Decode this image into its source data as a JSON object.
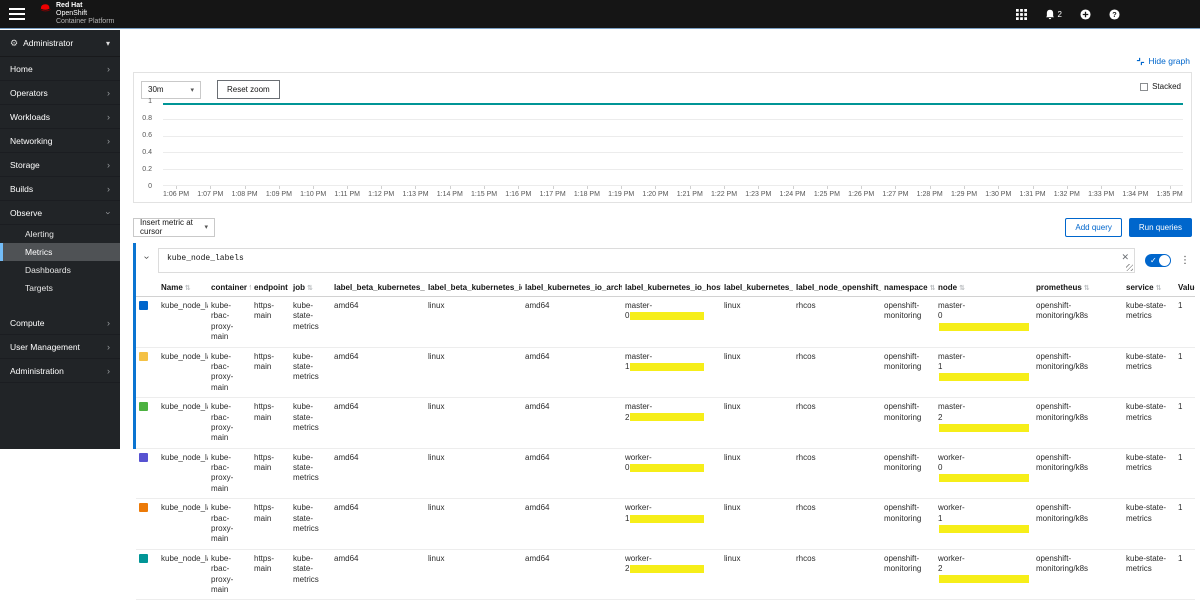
{
  "masthead": {
    "brand": {
      "line1": "Red Hat",
      "line2": "OpenShift",
      "line3": "Container Platform"
    },
    "notifications": {
      "count": "2"
    }
  },
  "sidebar": {
    "perspective": {
      "label": "Administrator"
    },
    "top_items": [
      {
        "label": "Home"
      },
      {
        "label": "Operators"
      },
      {
        "label": "Workloads"
      },
      {
        "label": "Networking"
      },
      {
        "label": "Storage"
      },
      {
        "label": "Builds"
      }
    ],
    "observe": {
      "label": "Observe",
      "children": [
        {
          "label": "Alerting",
          "active": false
        },
        {
          "label": "Metrics",
          "active": true
        },
        {
          "label": "Dashboards",
          "active": false
        },
        {
          "label": "Targets",
          "active": false
        }
      ]
    },
    "bottom_items": [
      {
        "label": "Compute"
      },
      {
        "label": "User Management"
      },
      {
        "label": "Administration"
      }
    ]
  },
  "graph_toolbar": {
    "time_range": "30m",
    "reset_zoom": "Reset zoom",
    "hide_graph": "Hide graph",
    "stacked_label": "Stacked"
  },
  "query_toolbar": {
    "insert_metric": "Insert metric at cursor",
    "add_query": "Add query",
    "run_queries": "Run queries"
  },
  "query": {
    "expression": "kube_node_labels"
  },
  "chart_data": {
    "type": "line",
    "title": "",
    "xlabel": "",
    "ylabel": "",
    "ylim": [
      0,
      1
    ],
    "grid": true,
    "legend": "none",
    "y_ticks": [
      "1",
      "0.8",
      "0.6",
      "0.4",
      "0.2",
      "0"
    ],
    "x_labels": [
      "1:06 PM",
      "1:07 PM",
      "1:08 PM",
      "1:09 PM",
      "1:10 PM",
      "1:11 PM",
      "1:12 PM",
      "1:13 PM",
      "1:14 PM",
      "1:15 PM",
      "1:16 PM",
      "1:17 PM",
      "1:18 PM",
      "1:19 PM",
      "1:20 PM",
      "1:21 PM",
      "1:22 PM",
      "1:23 PM",
      "1:24 PM",
      "1:25 PM",
      "1:26 PM",
      "1:27 PM",
      "1:28 PM",
      "1:29 PM",
      "1:30 PM",
      "1:31 PM",
      "1:32 PM",
      "1:33 PM",
      "1:34 PM",
      "1:35 PM"
    ],
    "series": [
      {
        "name": "kube_node_labels master-0",
        "constant_value": 1,
        "color": "#0066cc"
      },
      {
        "name": "kube_node_labels master-1",
        "constant_value": 1,
        "color": "#f4c145"
      },
      {
        "name": "kube_node_labels master-2",
        "constant_value": 1,
        "color": "#4cb140"
      },
      {
        "name": "kube_node_labels worker-0",
        "constant_value": 1,
        "color": "#5752d1"
      },
      {
        "name": "kube_node_labels worker-1",
        "constant_value": 1,
        "color": "#ec7a08"
      },
      {
        "name": "kube_node_labels worker-2",
        "constant_value": 1,
        "color": "#009596"
      }
    ],
    "visible_line_note": "all six series overlap as one flat line at y=1; topmost color #009596"
  },
  "table": {
    "columns": [
      {
        "label": "Name"
      },
      {
        "label": "container"
      },
      {
        "label": "endpoint"
      },
      {
        "label": "job"
      },
      {
        "label": "label_beta_kubernetes_io_arch"
      },
      {
        "label": "label_beta_kubernetes_io_os"
      },
      {
        "label": "label_kubernetes_io_arch"
      },
      {
        "label": "label_kubernetes_io_hostname"
      },
      {
        "label": "label_kubernetes_io_os"
      },
      {
        "label": "label_node_openshift_io_os_id"
      },
      {
        "label": "namespace"
      },
      {
        "label": "node"
      },
      {
        "label": "prometheus"
      },
      {
        "label": "service"
      },
      {
        "label": "Value"
      }
    ],
    "rows": [
      {
        "color": "#0066cc",
        "name": "kube_node_labels",
        "container": "kube-rbac-\nproxy-main",
        "endpoint": "https-main",
        "job": "kube-state-\nmetrics",
        "beta_arch": "amd64",
        "beta_os": "linux",
        "arch": "amd64",
        "hostname_line1": "master-",
        "hostname_line2": "0",
        "os": "linux",
        "os_id": "rhcos",
        "namespace": "openshift-\nmonitoring",
        "node_line1": "master-",
        "node_line2": "0",
        "prometheus": "openshift-\nmonitoring/k8s",
        "service": "kube-state-\nmetrics",
        "value": "1"
      },
      {
        "color": "#f4c145",
        "name": "kube_node_labels",
        "container": "kube-rbac-\nproxy-main",
        "endpoint": "https-main",
        "job": "kube-state-\nmetrics",
        "beta_arch": "amd64",
        "beta_os": "linux",
        "arch": "amd64",
        "hostname_line1": "master-",
        "hostname_line2": "1",
        "os": "linux",
        "os_id": "rhcos",
        "namespace": "openshift-\nmonitoring",
        "node_line1": "master-",
        "node_line2": "1",
        "prometheus": "openshift-\nmonitoring/k8s",
        "service": "kube-state-\nmetrics",
        "value": "1"
      },
      {
        "color": "#4cb140",
        "name": "kube_node_labels",
        "container": "kube-rbac-\nproxy-main",
        "endpoint": "https-main",
        "job": "kube-state-\nmetrics",
        "beta_arch": "amd64",
        "beta_os": "linux",
        "arch": "amd64",
        "hostname_line1": "master-",
        "hostname_line2": "2",
        "os": "linux",
        "os_id": "rhcos",
        "namespace": "openshift-\nmonitoring",
        "node_line1": "master-",
        "node_line2": "2",
        "prometheus": "openshift-\nmonitoring/k8s",
        "service": "kube-state-\nmetrics",
        "value": "1"
      },
      {
        "color": "#5752d1",
        "name": "kube_node_labels",
        "container": "kube-rbac-\nproxy-main",
        "endpoint": "https-main",
        "job": "kube-state-\nmetrics",
        "beta_arch": "amd64",
        "beta_os": "linux",
        "arch": "amd64",
        "hostname_line1": "worker-",
        "hostname_line2": "0",
        "os": "linux",
        "os_id": "rhcos",
        "namespace": "openshift-\nmonitoring",
        "node_line1": "worker-",
        "node_line2": "0",
        "prometheus": "openshift-\nmonitoring/k8s",
        "service": "kube-state-\nmetrics",
        "value": "1"
      },
      {
        "color": "#ec7a08",
        "name": "kube_node_labels",
        "container": "kube-rbac-\nproxy-main",
        "endpoint": "https-main",
        "job": "kube-state-\nmetrics",
        "beta_arch": "amd64",
        "beta_os": "linux",
        "arch": "amd64",
        "hostname_line1": "worker-",
        "hostname_line2": "1",
        "os": "linux",
        "os_id": "rhcos",
        "namespace": "openshift-\nmonitoring",
        "node_line1": "worker-",
        "node_line2": "1",
        "prometheus": "openshift-\nmonitoring/k8s",
        "service": "kube-state-\nmetrics",
        "value": "1"
      },
      {
        "color": "#009596",
        "name": "kube_node_labels",
        "container": "kube-rbac-\nproxy-main",
        "endpoint": "https-main",
        "job": "kube-state-\nmetrics",
        "beta_arch": "amd64",
        "beta_os": "linux",
        "arch": "amd64",
        "hostname_line1": "worker-",
        "hostname_line2": "2",
        "os": "linux",
        "os_id": "rhcos",
        "namespace": "openshift-\nmonitoring",
        "node_line1": "worker-",
        "node_line2": "2",
        "prometheus": "openshift-\nmonitoring/k8s",
        "service": "kube-state-\nmetrics",
        "value": "1"
      }
    ]
  }
}
